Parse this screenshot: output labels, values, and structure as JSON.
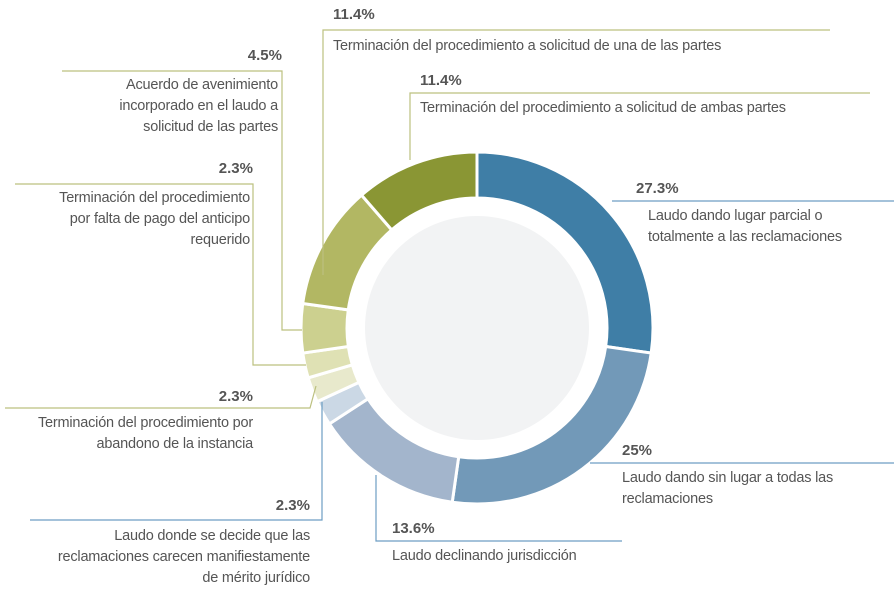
{
  "chart_data": {
    "type": "donut",
    "categories": [
      "Laudo dando lugar parcial o totalmente a las reclamaciones",
      "Laudo dando sin lugar a todas las reclamaciones",
      "Laudo declinando jurisdicción",
      "Laudo donde se decide que las reclamaciones carecen manifiestamente de mérito jurídico",
      "Terminación del procedimiento por abandono de la instancia",
      "Terminación del procedimiento por falta de pago del anticipo requerido",
      "Acuerdo de avenimiento incorporado en el laudo a solicitud de las partes",
      "Terminación del procedimiento a solicitud de una de las partes",
      "Terminación del procedimiento a solicitud de ambas partes"
    ],
    "values": [
      27.3,
      25,
      13.6,
      2.3,
      2.3,
      2.3,
      4.5,
      11.4,
      11.4
    ],
    "value_labels": [
      "27.3%",
      "25%",
      "13.6%",
      "2.3%",
      "2.3%",
      "2.3%",
      "4.5%",
      "11.4%",
      "11.4%"
    ],
    "colors": [
      "#3f7ea6",
      "#7299b8",
      "#a3b5cc",
      "#cbd8e5",
      "#e8e9cc",
      "#dfe1b4",
      "#ccd08f",
      "#b2b763",
      "#8a9634"
    ]
  }
}
